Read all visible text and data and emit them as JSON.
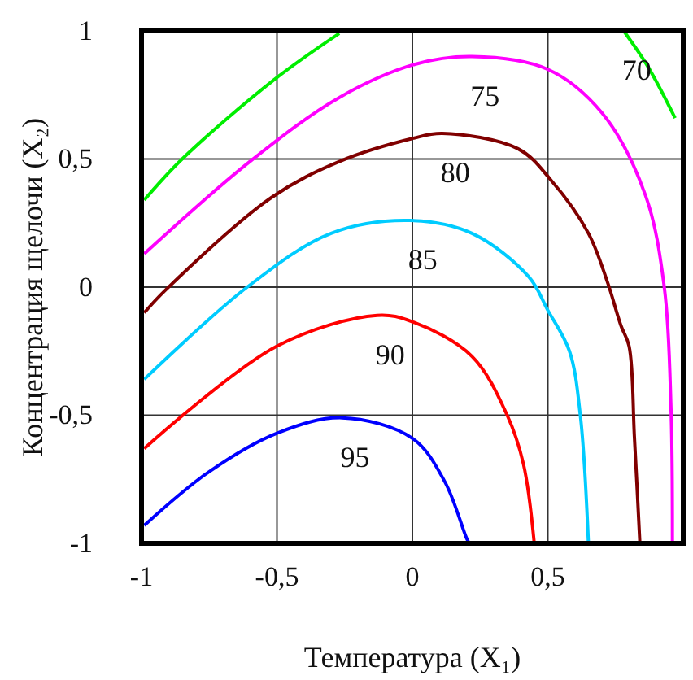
{
  "chart_data": {
    "type": "line",
    "xlabel": "Температура (X₁)",
    "ylabel": "Концентрация щелочи (X₂)",
    "xlim": [
      -1,
      1
    ],
    "ylim": [
      -1,
      1
    ],
    "xticks": [
      -1,
      {
        "value": -0.5,
        "label": "-0,5"
      },
      0,
      {
        "value": 0.5,
        "label": "0,5"
      }
    ],
    "yticks": [
      -1,
      {
        "value": -0.5,
        "label": "-0,5"
      },
      0,
      {
        "value": 0.5,
        "label": "0,5"
      },
      1
    ],
    "grid": true,
    "line_style": "solid",
    "marker": "none",
    "series": [
      {
        "color": "#00ee00",
        "x": [
          -0.99,
          -0.85,
          -0.51,
          -0.27
        ],
        "values": [
          0.34,
          0.5,
          0.81,
          0.99
        ]
      },
      {
        "name": "70",
        "color": "#00ee00",
        "x": [
          0.78,
          0.87,
          0.97
        ],
        "values": [
          1.0,
          0.86,
          0.66
        ]
      },
      {
        "name": "75",
        "color": "#ff00ff",
        "x": [
          -0.99,
          -0.6,
          -0.27,
          0.01,
          0.22,
          0.5,
          0.7,
          0.86,
          0.93,
          0.955,
          0.96
        ],
        "values": [
          0.13,
          0.49,
          0.74,
          0.87,
          0.9,
          0.85,
          0.68,
          0.36,
          0.0,
          -0.48,
          -1.0
        ]
      },
      {
        "name": "80",
        "color": "#800000",
        "x": [
          -0.99,
          -0.91,
          -0.52,
          -0.27,
          0.0,
          0.11,
          0.39,
          0.51,
          0.65,
          0.72,
          0.77,
          0.8,
          0.82,
          0.84
        ],
        "values": [
          -0.1,
          -0.01,
          0.35,
          0.49,
          0.58,
          0.6,
          0.54,
          0.42,
          0.21,
          0.02,
          -0.15,
          -0.23,
          -0.59,
          -1.0
        ]
      },
      {
        "name": "85",
        "color": "#00ccff",
        "x": [
          -0.99,
          -0.61,
          -0.3,
          -0.01,
          0.22,
          0.43,
          0.5,
          0.58,
          0.62,
          0.65
        ],
        "values": [
          -0.36,
          0.0,
          0.21,
          0.26,
          0.21,
          0.04,
          -0.09,
          -0.25,
          -0.5,
          -1.0
        ]
      },
      {
        "name": "90",
        "color": "#ff0000",
        "x": [
          -0.99,
          -0.5,
          -0.13,
          0.0,
          0.22,
          0.35,
          0.41,
          0.45
        ],
        "values": [
          -0.63,
          -0.23,
          -0.11,
          -0.135,
          -0.27,
          -0.5,
          -0.69,
          -1.0
        ]
      },
      {
        "name": "95",
        "color": "#0000ff",
        "x": [
          -0.99,
          -0.75,
          -0.5,
          -0.26,
          0.0,
          0.12,
          0.2,
          0.21
        ],
        "values": [
          -0.93,
          -0.72,
          -0.57,
          -0.51,
          -0.59,
          -0.76,
          -0.98,
          -1.0
        ]
      }
    ]
  }
}
